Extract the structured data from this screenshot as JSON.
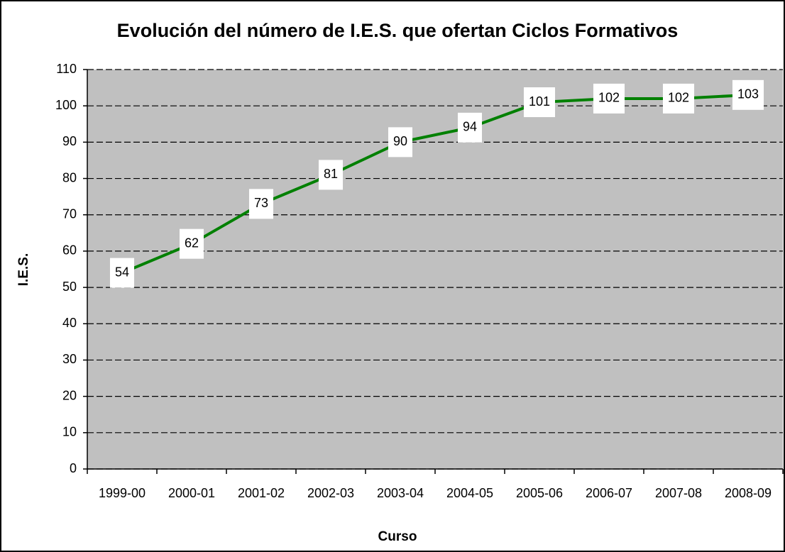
{
  "chart_data": {
    "type": "line",
    "title": "Evolución del número de I.E.S. que ofertan Ciclos Formativos",
    "x_label": "Curso",
    "y_label": "I.E.S.",
    "categories": [
      "1999-00",
      "2000-01",
      "2001-02",
      "2002-03",
      "2003-04",
      "2004-05",
      "2005-06",
      "2006-07",
      "2007-08",
      "2008-09"
    ],
    "values": [
      54,
      62,
      73,
      81,
      90,
      94,
      101,
      102,
      102,
      103
    ],
    "color": "#008000",
    "ylim": [
      0,
      110
    ],
    "yticks": [
      0,
      10,
      20,
      30,
      40,
      50,
      60,
      70,
      80,
      90,
      100,
      110
    ],
    "grid": true,
    "legend": false
  }
}
